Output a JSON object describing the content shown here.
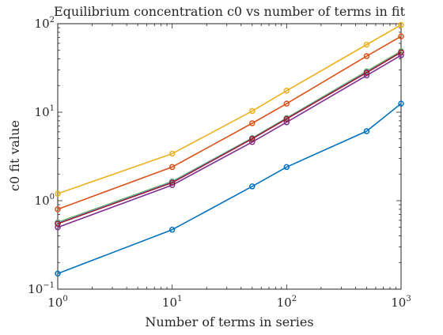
{
  "chart_data": {
    "type": "line",
    "title": "Equilibrium concentration c0 vs number of terms in fit",
    "xlabel": "Number of terms in series",
    "ylabel": "c0 fit value",
    "xscale": "log",
    "yscale": "log",
    "xlim": [
      1,
      1000
    ],
    "ylim": [
      0.1,
      100
    ],
    "x_ticks": [
      {
        "value": 1,
        "base": "10",
        "exp": "0"
      },
      {
        "value": 10,
        "base": "10",
        "exp": "1"
      },
      {
        "value": 100,
        "base": "10",
        "exp": "2"
      },
      {
        "value": 1000,
        "base": "10",
        "exp": "3"
      }
    ],
    "y_ticks": [
      {
        "value": 0.1,
        "base": "10",
        "exp": "−1"
      },
      {
        "value": 1,
        "base": "10",
        "exp": "0"
      },
      {
        "value": 10,
        "base": "10",
        "exp": "1"
      },
      {
        "value": 100,
        "base": "10",
        "exp": "2"
      }
    ],
    "grid": false,
    "box": true,
    "x": [
      1,
      10,
      50,
      100,
      500,
      1000
    ],
    "series": [
      {
        "color": "#0072BD",
        "values": [
          0.15,
          0.47,
          1.45,
          2.4,
          6.1,
          12.5
        ]
      },
      {
        "color": "#D95319",
        "values": [
          0.8,
          2.4,
          7.5,
          12.5,
          43,
          72
        ]
      },
      {
        "color": "#EDB120",
        "values": [
          1.2,
          3.4,
          10.3,
          17.5,
          58,
          97
        ]
      },
      {
        "color": "#7E2F8E",
        "values": [
          0.5,
          1.5,
          4.6,
          7.7,
          26,
          44
        ]
      },
      {
        "color": "#77AC30",
        "values": [
          0.57,
          1.65,
          5.1,
          8.6,
          29,
          49
        ]
      },
      {
        "color": "#4DBEEE",
        "values": [
          0.56,
          1.63,
          5.05,
          8.5,
          28.5,
          48
        ]
      },
      {
        "color": "#A2142F",
        "values": [
          0.55,
          1.6,
          5.0,
          8.4,
          28,
          47.5
        ]
      }
    ]
  }
}
